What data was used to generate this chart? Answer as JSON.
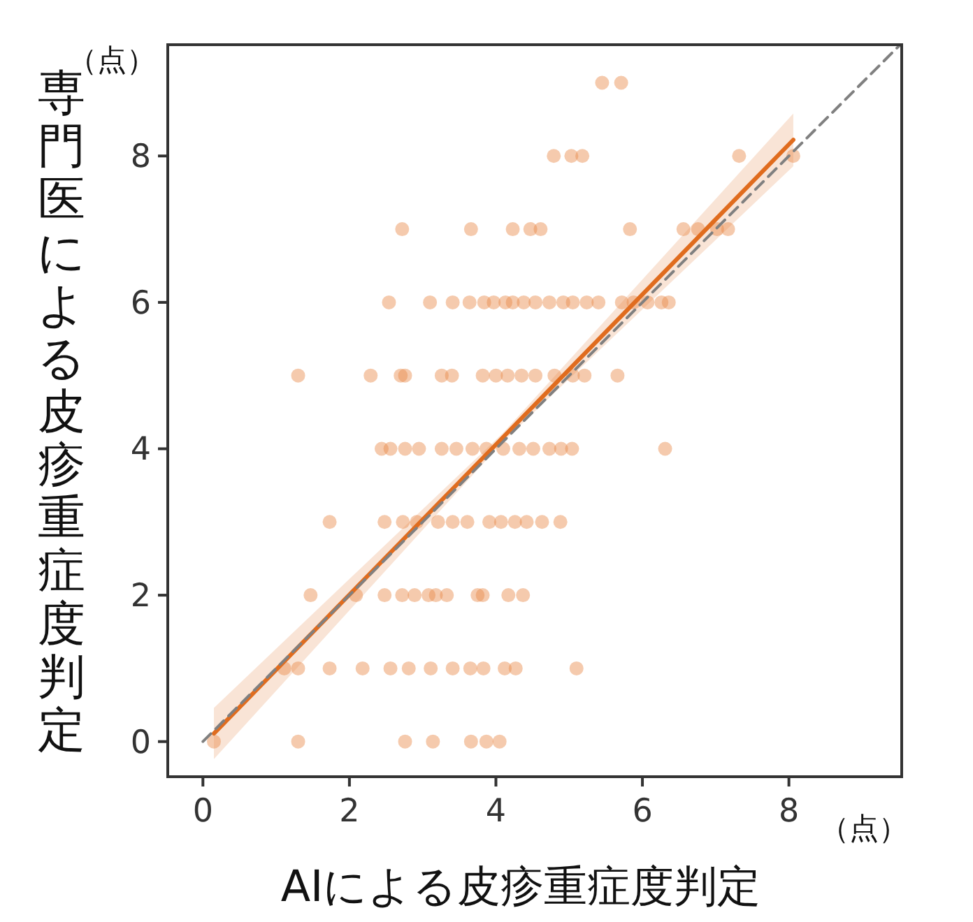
{
  "chart_data": {
    "type": "scatter",
    "xlabel": "AIによる皮疹重症度判定",
    "ylabel": "専門医による皮疹重症度判定",
    "annotations": [
      "（点）",
      "（点）"
    ],
    "xlim": [
      -0.48,
      9.54
    ],
    "ylim": [
      -0.48,
      9.52
    ],
    "xticks": [
      0,
      2,
      4,
      6,
      8
    ],
    "yticks": [
      0,
      2,
      4,
      6,
      8
    ],
    "marker": "circle",
    "series": [
      {
        "color": "#e8894a",
        "x": [
          5.45,
          5.71,
          4.79,
          5.03,
          5.18,
          7.32,
          8.06,
          2.72,
          3.66,
          4.23,
          4.47,
          4.61,
          5.83,
          6.56,
          6.76,
          7.02,
          7.17,
          2.54,
          3.1,
          3.41,
          3.64,
          3.84,
          3.97,
          4.13,
          4.23,
          4.38,
          4.54,
          4.73,
          4.92,
          5.05,
          5.24,
          5.4,
          5.72,
          5.88,
          6.07,
          6.26,
          6.36,
          1.3,
          2.29,
          2.7,
          2.76,
          3.26,
          3.4,
          3.82,
          4.0,
          4.16,
          4.35,
          4.54,
          4.8,
          5.05,
          5.21,
          5.66,
          2.44,
          2.56,
          2.76,
          2.95,
          3.26,
          3.46,
          3.68,
          3.87,
          4.1,
          4.32,
          4.51,
          4.73,
          4.89,
          5.04,
          6.31,
          1.73,
          2.48,
          2.73,
          2.92,
          3.21,
          3.41,
          3.61,
          3.91,
          4.07,
          4.26,
          4.42,
          4.63,
          4.88,
          1.47,
          2.09,
          2.48,
          2.72,
          2.89,
          3.08,
          3.18,
          3.33,
          3.75,
          3.82,
          4.17,
          4.37,
          1.11,
          1.3,
          1.73,
          2.18,
          2.56,
          2.81,
          3.11,
          3.41,
          3.65,
          3.83,
          4.12,
          4.27,
          5.1,
          0.15,
          1.3,
          2.76,
          3.14,
          3.66,
          3.87,
          4.05
        ],
        "values": [
          9,
          9,
          8,
          8,
          8,
          8,
          8,
          7,
          7,
          7,
          7,
          7,
          7,
          7,
          7,
          7,
          7,
          6,
          6,
          6,
          6,
          6,
          6,
          6,
          6,
          6,
          6,
          6,
          6,
          6,
          6,
          6,
          6,
          6,
          6,
          6,
          6,
          5,
          5,
          5,
          5,
          5,
          5,
          5,
          5,
          5,
          5,
          5,
          5,
          5,
          5,
          5,
          4,
          4,
          4,
          4,
          4,
          4,
          4,
          4,
          4,
          4,
          4,
          4,
          4,
          4,
          4,
          3,
          3,
          3,
          3,
          3,
          3,
          3,
          3,
          3,
          3,
          3,
          3,
          3,
          2,
          2,
          2,
          2,
          2,
          2,
          2,
          2,
          2,
          2,
          2,
          2,
          1,
          1,
          1,
          1,
          1,
          1,
          1,
          1,
          1,
          1,
          1,
          1,
          1,
          0,
          0,
          0,
          0,
          0,
          0,
          0
        ]
      },
      {
        "type": "line",
        "marker": "none",
        "color": "#e06c1e",
        "x": [
          0.15,
          4.1,
          8.06
        ],
        "values": [
          0.11,
          4.16,
          8.22
        ],
        "lower": [
          -0.24,
          4.1,
          7.86
        ],
        "upper": [
          0.46,
          4.22,
          8.58
        ]
      },
      {
        "type": "line",
        "marker": "none",
        "line_style": "dashed",
        "color": "#808080",
        "x": [
          0,
          9.52
        ],
        "values": [
          0,
          9.52
        ]
      }
    ]
  }
}
